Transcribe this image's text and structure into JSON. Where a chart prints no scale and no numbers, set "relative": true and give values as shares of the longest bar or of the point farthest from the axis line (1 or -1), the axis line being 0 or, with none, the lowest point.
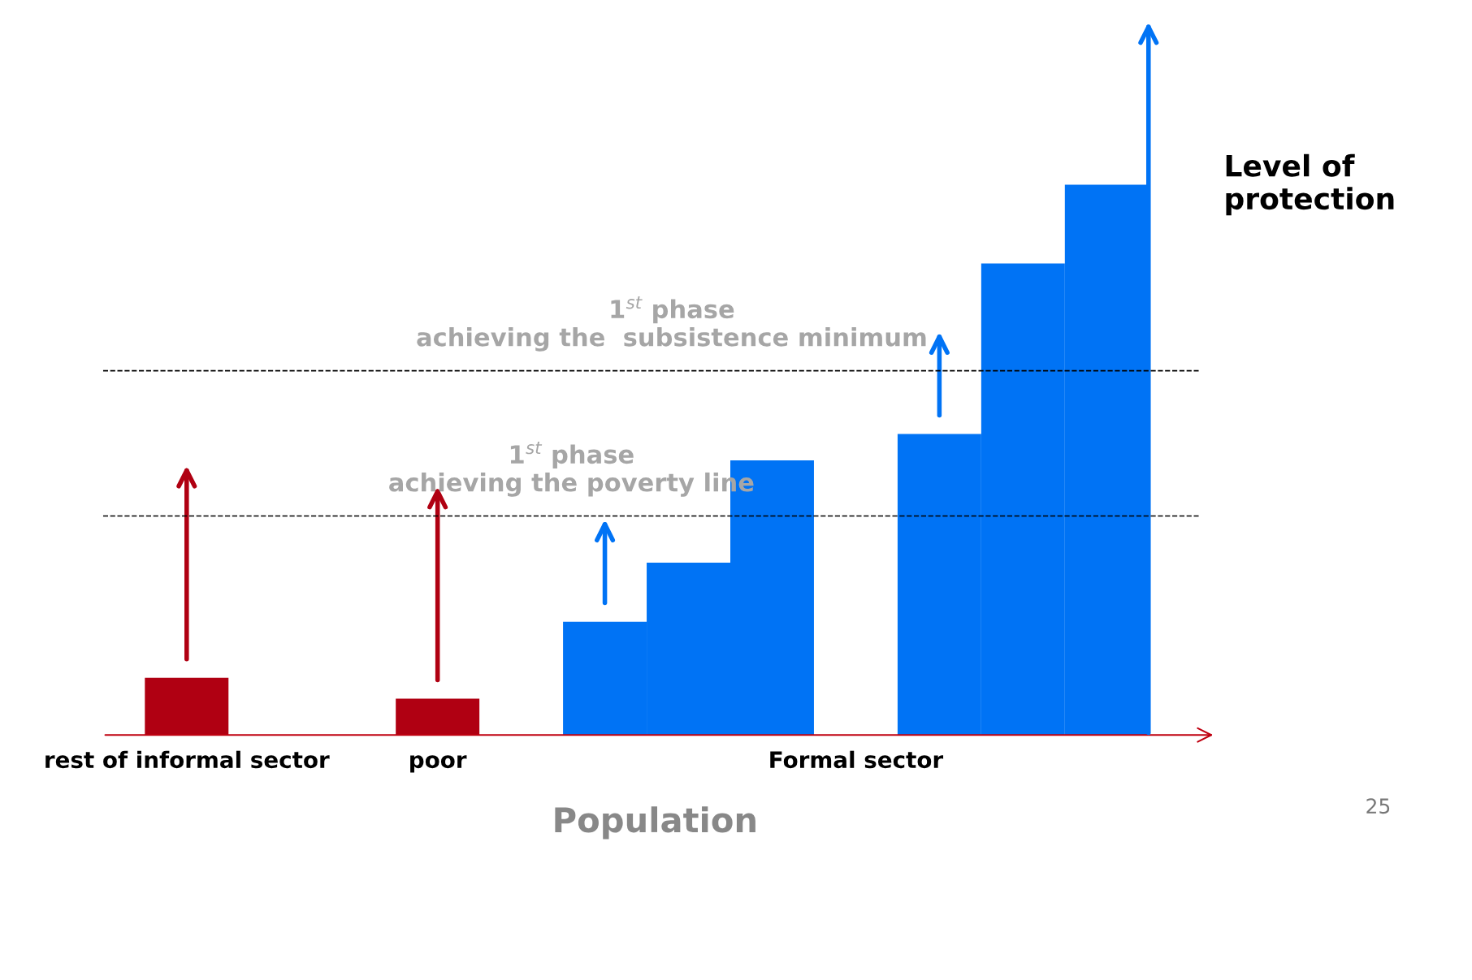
{
  "chart_data": {
    "type": "bar",
    "relative": true,
    "categories": [
      "rest of informal sector",
      null,
      null,
      "poor",
      null,
      null,
      null,
      null,
      "Formal sector",
      null,
      null,
      null
    ],
    "values": [
      0.104,
      null,
      null,
      0.066,
      null,
      0.206,
      0.313,
      0.499,
      null,
      0.547,
      0.857,
      1
    ],
    "colors": [
      "#b00012",
      null,
      null,
      "#b00012",
      null,
      "#0073f5",
      "#0073f5",
      "#0073f5",
      null,
      "#0073f5",
      "#0073f5",
      "#0073f5"
    ],
    "xlabel": "Population",
    "ylabel": "Level of protection",
    "ref_lines": [
      {
        "axis": "y",
        "value": 0.662,
        "label": "1$^{st}$ phase\nachieving the  subsistence minimum",
        "color": "#000000",
        "line_style": "dashed"
      },
      {
        "axis": "y",
        "value": 0.398,
        "label": "1$^{st}$ phase\nachieving the poverty line",
        "color": "#000000",
        "line_style": "dashed"
      }
    ],
    "annotations": [
      "25"
    ],
    "grid": false
  }
}
